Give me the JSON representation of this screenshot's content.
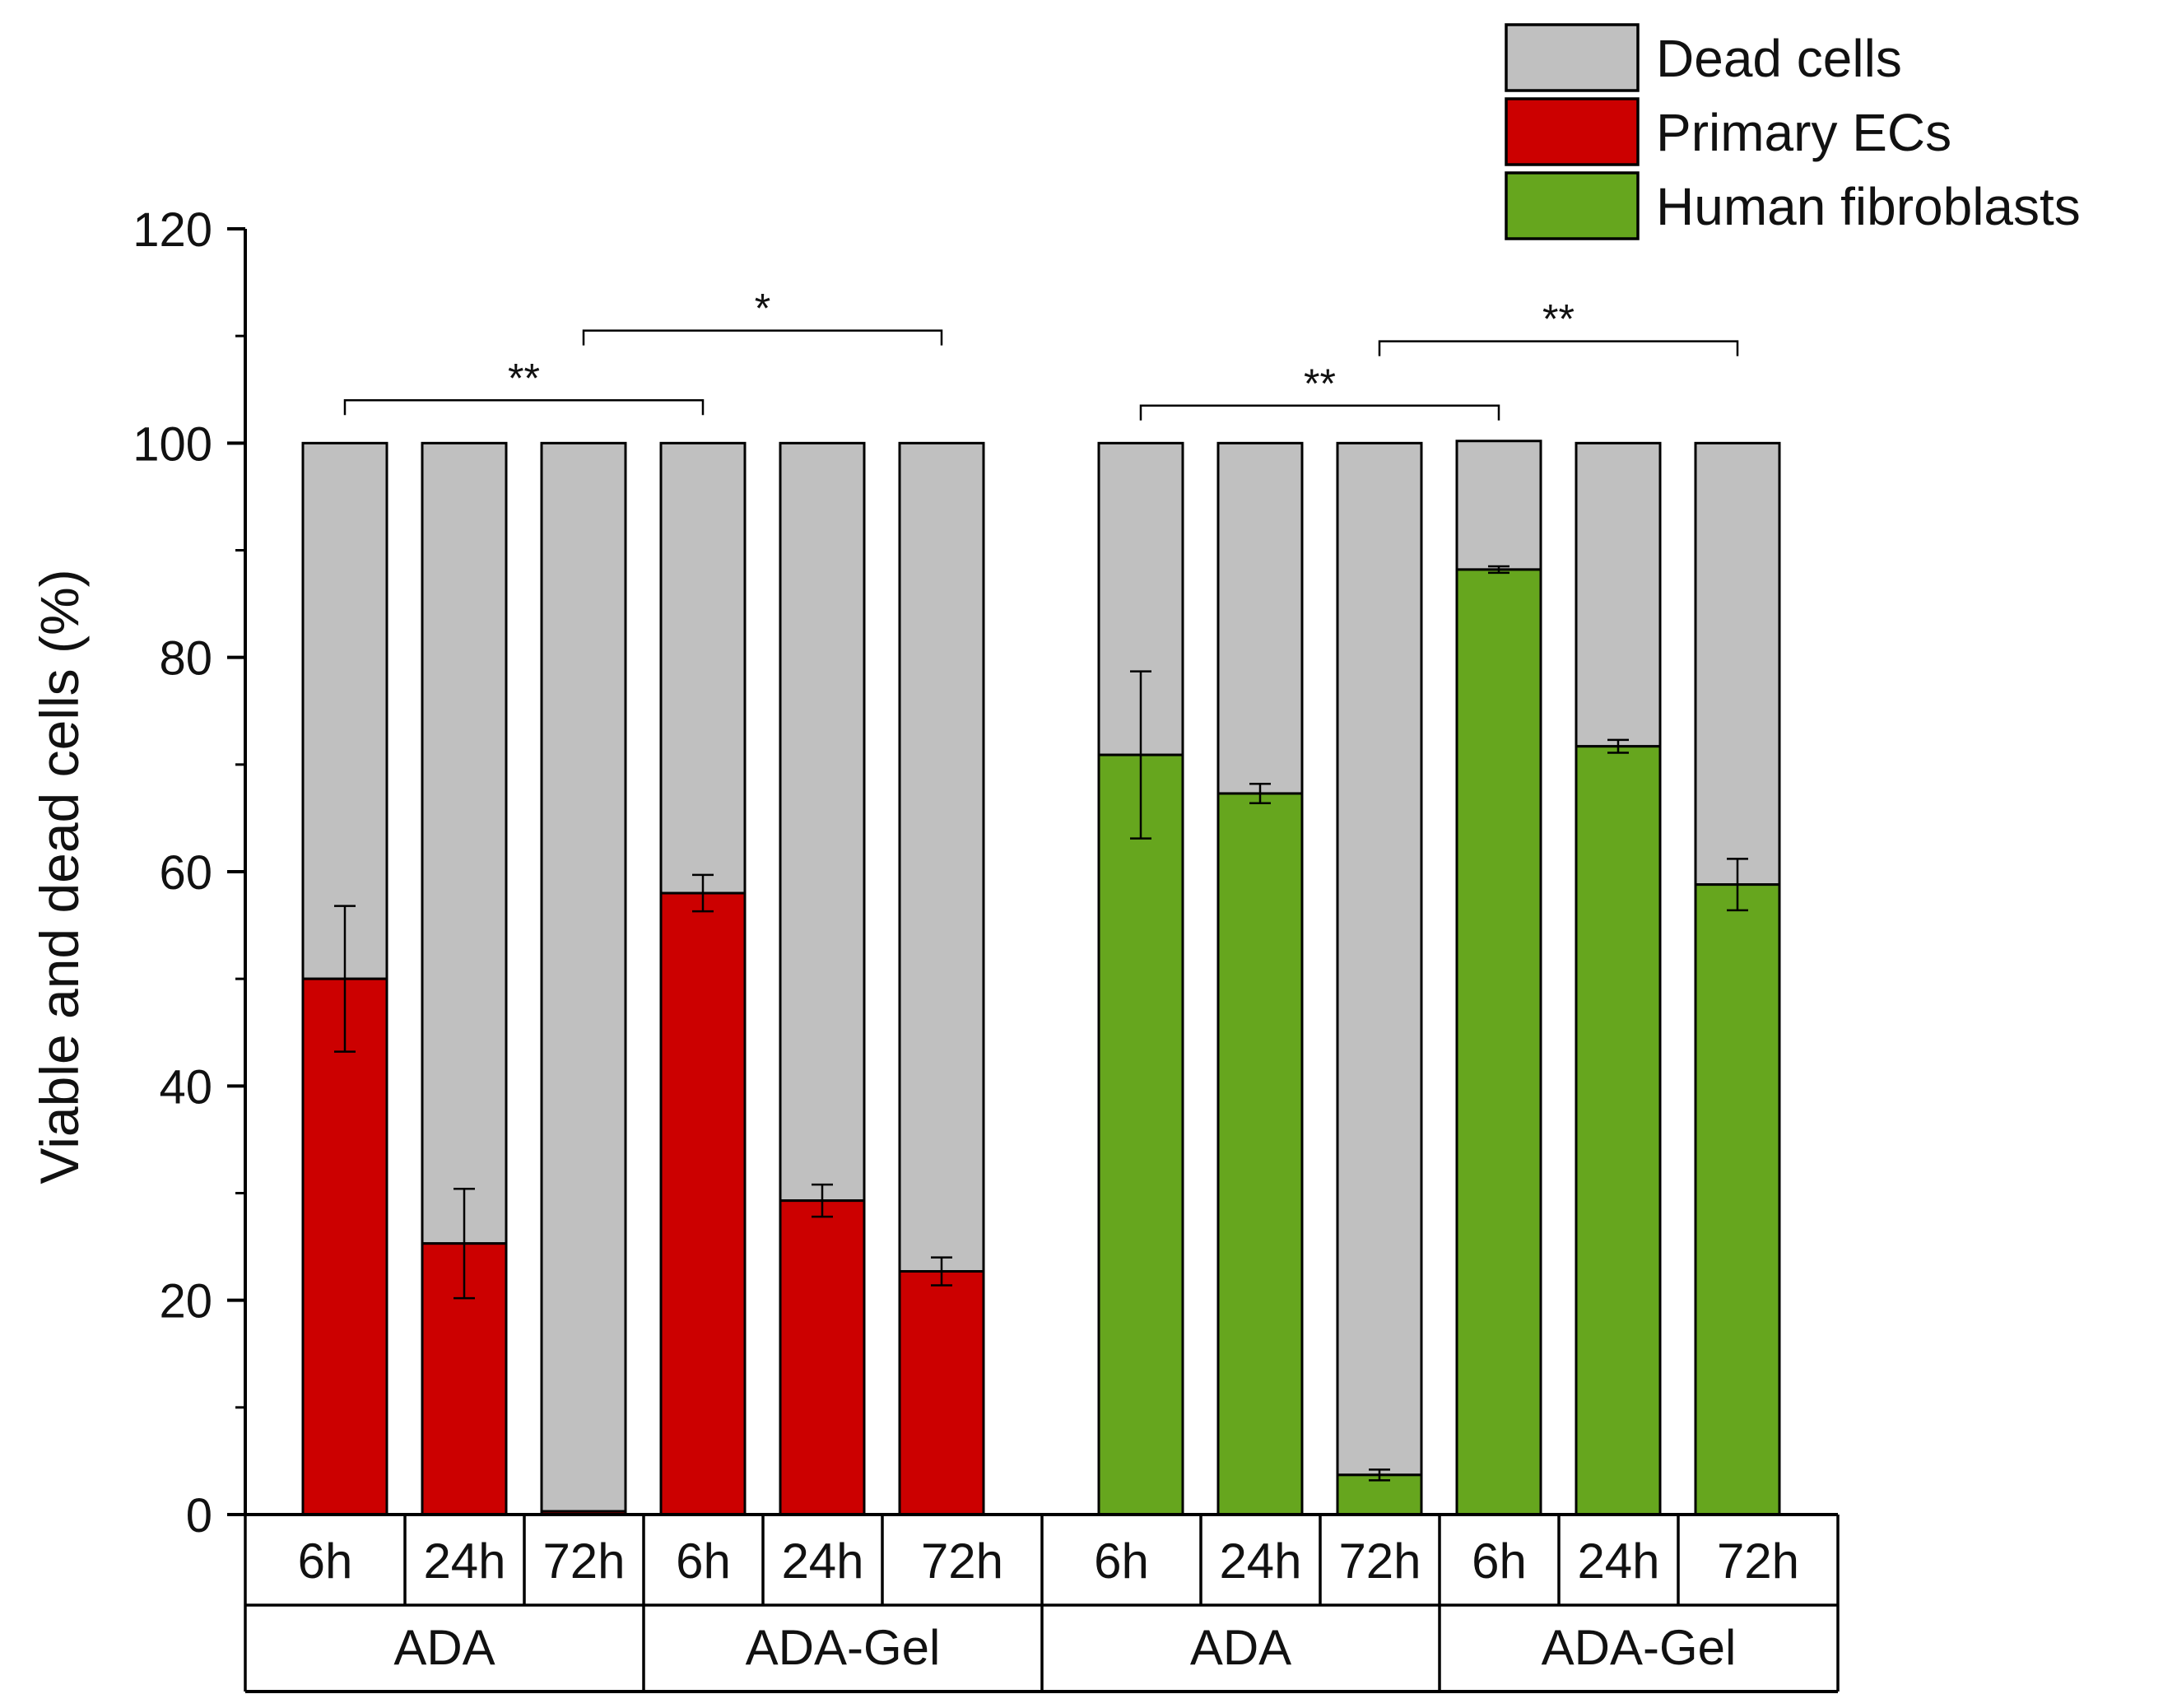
{
  "chart_data": {
    "type": "bar",
    "stacked": true,
    "ylabel": "Viable and dead cells (%)",
    "ylim": [
      0,
      120
    ],
    "yticks": [
      0,
      20,
      40,
      60,
      80,
      100,
      120
    ],
    "legend_position": "top-right",
    "legend": [
      {
        "label": "Dead cells",
        "color": "#c0c0c0"
      },
      {
        "label": "Primary ECs",
        "color": "#cc0000"
      },
      {
        "label": "Human fibroblasts",
        "color": "#66a61e"
      }
    ],
    "colors": {
      "dead": "#c0c0c0",
      "ec": "#cc0000",
      "fib": "#66a61e"
    },
    "bars": [
      {
        "time": "6h",
        "material": "ADA",
        "cell": "ec",
        "viable": 50.0,
        "error": 6.8,
        "total": 100
      },
      {
        "time": "24h",
        "material": "ADA",
        "cell": "ec",
        "viable": 25.3,
        "error": 5.1,
        "total": 100
      },
      {
        "time": "72h",
        "material": "ADA",
        "cell": "ec",
        "viable": 0.3,
        "error": 0,
        "total": 100
      },
      {
        "time": "6h",
        "material": "ADA-Gel",
        "cell": "ec",
        "viable": 58.0,
        "error": 1.7,
        "total": 100
      },
      {
        "time": "24h",
        "material": "ADA-Gel",
        "cell": "ec",
        "viable": 29.3,
        "error": 1.5,
        "total": 100
      },
      {
        "time": "72h",
        "material": "ADA-Gel",
        "cell": "ec",
        "viable": 22.7,
        "error": 1.3,
        "total": 100
      },
      {
        "time": "6h",
        "material": "ADA",
        "cell": "fib",
        "viable": 70.9,
        "error": 7.8,
        "total": 100
      },
      {
        "time": "24h",
        "material": "ADA",
        "cell": "fib",
        "viable": 67.3,
        "error": 0.9,
        "total": 100
      },
      {
        "time": "72h",
        "material": "ADA",
        "cell": "fib",
        "viable": 3.7,
        "error": 0.5,
        "total": 100
      },
      {
        "time": "6h",
        "material": "ADA-Gel",
        "cell": "fib",
        "viable": 88.2,
        "error": 0.3,
        "total": 100.2
      },
      {
        "time": "24h",
        "material": "ADA-Gel",
        "cell": "fib",
        "viable": 71.7,
        "error": 0.6,
        "total": 100
      },
      {
        "time": "72h",
        "material": "ADA-Gel",
        "cell": "fib",
        "viable": 58.8,
        "error": 2.4,
        "total": 100
      }
    ],
    "groups": [
      {
        "label": "ADA",
        "from": 0,
        "to": 2
      },
      {
        "label": "ADA-Gel",
        "from": 3,
        "to": 5
      },
      {
        "label": "ADA",
        "from": 6,
        "to": 8
      },
      {
        "label": "ADA-Gel",
        "from": 9,
        "to": 11
      }
    ],
    "significance": [
      {
        "label": "**",
        "from": 0,
        "to": 3,
        "y": 104
      },
      {
        "label": "*",
        "from": 2,
        "to": 5,
        "y": 110.5
      },
      {
        "label": "**",
        "from": 6,
        "to": 9,
        "y": 103.5
      },
      {
        "label": "**",
        "from": 8,
        "to": 11,
        "y": 109.5
      }
    ]
  }
}
